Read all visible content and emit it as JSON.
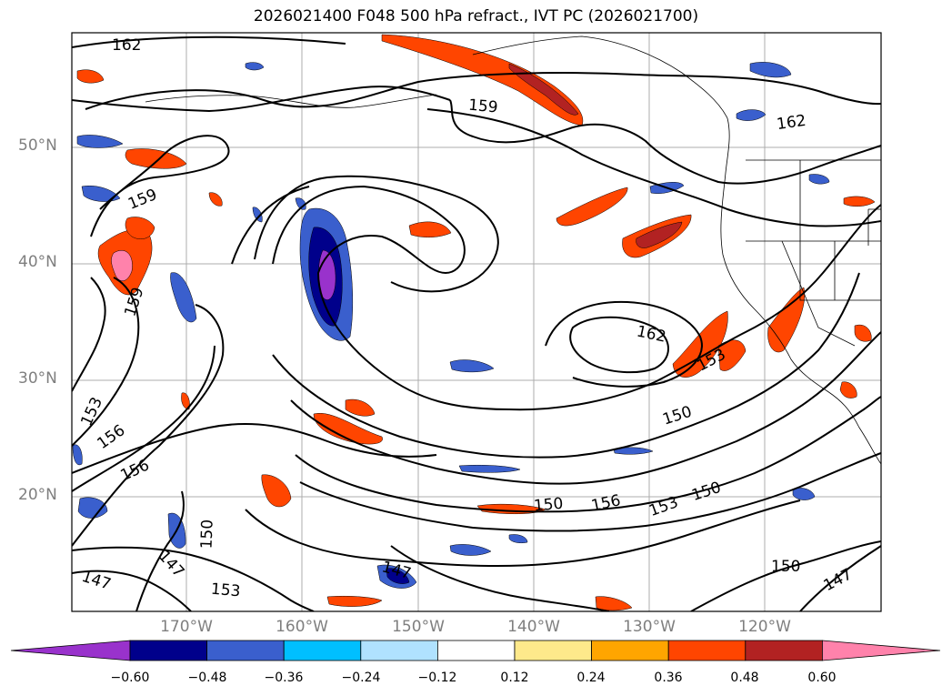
{
  "title": "2026021400 F048 500 hPa refract., IVT PC (2026021700)",
  "lat_labels": [
    "50°N",
    "40°N",
    "30°N",
    "20°N"
  ],
  "lon_labels": [
    "170°W",
    "160°W",
    "150°W",
    "140°W",
    "130°W",
    "120°W"
  ],
  "colorbar": {
    "ticks": [
      "−0.60",
      "−0.48",
      "−0.36",
      "−0.24",
      "−0.12",
      "0.12",
      "0.24",
      "0.36",
      "0.48",
      "0.60"
    ],
    "colors": [
      "#9932cc",
      "#00008b",
      "#3a5fcd",
      "#00bfff",
      "#b0e2ff",
      "#ffffff",
      "#fee98b",
      "#ffa500",
      "#ff4500",
      "#b22222",
      "#ff82ab"
    ]
  },
  "contour_labels": [
    "162",
    "159",
    "162",
    "159",
    "159",
    "162",
    "153",
    "150",
    "153",
    "156",
    "156",
    "150",
    "156",
    "153",
    "150",
    "150",
    "147",
    "147",
    "153",
    "150",
    "147",
    "147"
  ]
}
